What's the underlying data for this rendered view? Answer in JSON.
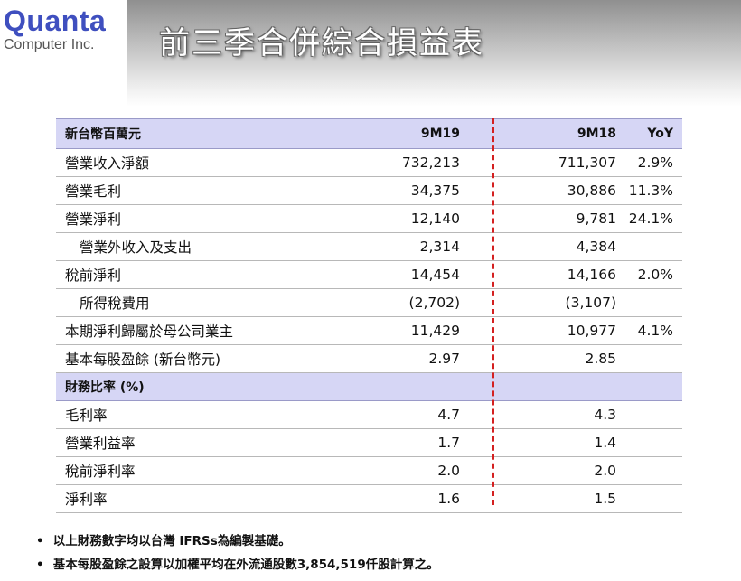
{
  "logo": {
    "name": "Quanta",
    "sub": "Computer Inc."
  },
  "title": "前三季合併綜合損益表",
  "table": {
    "header": {
      "label": "新台幣百萬元",
      "col1": "9M19",
      "col2": "9M18",
      "col3": "YoY"
    },
    "rows": [
      {
        "label": "營業收入淨額",
        "c1": "732,213",
        "c2": "711,307",
        "c3": "2.9%",
        "indent": false
      },
      {
        "label": "營業毛利",
        "c1": "34,375",
        "c2": "30,886",
        "c3": "11.3%",
        "indent": false
      },
      {
        "label": "營業淨利",
        "c1": "12,140",
        "c2": "9,781",
        "c3": "24.1%",
        "indent": false
      },
      {
        "label": "營業外收入及支出",
        "c1": "2,314",
        "c2": "4,384",
        "c3": "",
        "indent": true
      },
      {
        "label": "稅前淨利",
        "c1": "14,454",
        "c2": "14,166",
        "c3": "2.0%",
        "indent": false
      },
      {
        "label": "所得稅費用",
        "c1": "(2,702)",
        "c2": "(3,107)",
        "c3": "",
        "indent": true
      },
      {
        "label": "本期淨利歸屬於母公司業主",
        "c1": "11,429",
        "c2": "10,977",
        "c3": "4.1%",
        "indent": false
      },
      {
        "label": "基本每股盈餘 (新台幣元)",
        "c1": "2.97",
        "c2": "2.85",
        "c3": "",
        "indent": false
      }
    ],
    "section": {
      "label": "財務比率 (%)"
    },
    "ratio_rows": [
      {
        "label": "毛利率",
        "c1": "4.7",
        "c2": "4.3",
        "c3": ""
      },
      {
        "label": "營業利益率",
        "c1": "1.7",
        "c2": "1.4",
        "c3": ""
      },
      {
        "label": "稅前淨利率",
        "c1": "2.0",
        "c2": "2.0",
        "c3": ""
      },
      {
        "label": "淨利率",
        "c1": "1.6",
        "c2": "1.5",
        "c3": ""
      }
    ]
  },
  "notes": [
    "以上財務數字均以台灣 IFRSs為編製基礎。",
    "基本每股盈餘之設算以加權平均在外流通股數3,854,519仟股計算之。"
  ],
  "colors": {
    "header_bg": "#d6d6f5",
    "divider": "#d42020",
    "logo": "#3f4fbf"
  }
}
